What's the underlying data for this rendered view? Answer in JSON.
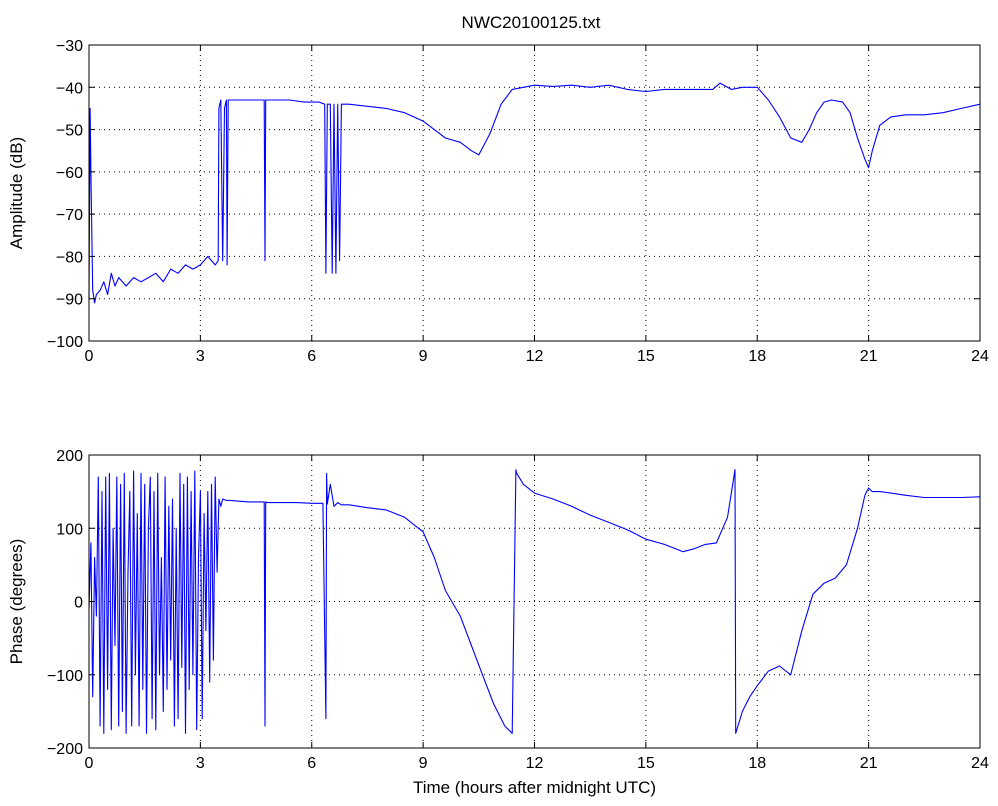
{
  "title": "NWC20100125.txt",
  "colors": {
    "series": "#0000ff",
    "axes": "#000000",
    "background": "#ffffff"
  },
  "chart_data": [
    {
      "type": "line",
      "title": "NWC20100125.txt",
      "xlabel": "",
      "ylabel": "Amplitude (dB)",
      "xlim": [
        0,
        24
      ],
      "ylim": [
        -100,
        -30
      ],
      "xticks": [
        0,
        3,
        6,
        9,
        12,
        15,
        18,
        21,
        24
      ],
      "yticks": [
        -100,
        -90,
        -80,
        -70,
        -60,
        -50,
        -40,
        -30
      ],
      "grid": true,
      "series": [
        {
          "color": "#0000ff",
          "x": [
            0,
            0.03,
            0.06,
            0.1,
            0.15,
            0.2,
            0.3,
            0.4,
            0.5,
            0.6,
            0.7,
            0.8,
            0.9,
            1.0,
            1.2,
            1.4,
            1.6,
            1.8,
            2.0,
            2.2,
            2.4,
            2.6,
            2.8,
            3.0,
            3.2,
            3.4,
            3.48,
            3.5,
            3.55,
            3.6,
            3.65,
            3.7,
            3.72,
            3.75,
            3.8,
            3.9,
            4.0,
            4.2,
            4.4,
            4.6,
            4.72,
            4.74,
            4.76,
            4.8,
            5.0,
            5.4,
            5.8,
            6.2,
            6.35,
            6.38,
            6.42,
            6.5,
            6.55,
            6.6,
            6.65,
            6.7,
            6.75,
            6.8,
            7.0,
            7.5,
            8.0,
            8.5,
            9.0,
            9.3,
            9.6,
            10.0,
            10.3,
            10.5,
            10.8,
            11.1,
            11.4,
            11.7,
            12.0,
            12.5,
            13.0,
            13.5,
            14.0,
            14.5,
            15.0,
            15.5,
            16.0,
            16.5,
            16.8,
            17.0,
            17.3,
            17.6,
            18.0,
            18.3,
            18.6,
            18.9,
            19.2,
            19.4,
            19.6,
            19.8,
            20.0,
            20.3,
            20.5,
            20.7,
            20.9,
            21.0,
            21.1,
            21.3,
            21.6,
            22.0,
            22.5,
            23.0,
            23.5,
            24.0
          ],
          "values": [
            -90,
            -45,
            -65,
            -88,
            -91,
            -89,
            -88,
            -86,
            -89,
            -84,
            -87,
            -85,
            -86,
            -87,
            -85,
            -86,
            -85,
            -84,
            -86,
            -83,
            -84,
            -82,
            -83,
            -82,
            -80,
            -82,
            -81,
            -45,
            -43,
            -81,
            -45,
            -43,
            -82,
            -43,
            -43,
            -43,
            -43,
            -43,
            -43,
            -43,
            -43,
            -81,
            -43,
            -43,
            -43,
            -43,
            -43.5,
            -43.5,
            -44,
            -84,
            -44,
            -44,
            -84,
            -44,
            -84,
            -44,
            -81,
            -44,
            -44,
            -44.5,
            -45,
            -46,
            -48,
            -50,
            -52,
            -53,
            -55,
            -56,
            -51,
            -44,
            -40.5,
            -40,
            -39.5,
            -39.8,
            -39.5,
            -40,
            -39.5,
            -40.5,
            -41,
            -40.5,
            -40.5,
            -40.5,
            -40.5,
            -39,
            -40.5,
            -40,
            -40,
            -43,
            -47,
            -52,
            -53,
            -50,
            -46,
            -43.5,
            -43,
            -43.5,
            -46,
            -52,
            -57,
            -59,
            -55,
            -49,
            -47,
            -46.5,
            -46.5,
            -46,
            -45,
            -44
          ]
        }
      ]
    },
    {
      "type": "line",
      "title": "",
      "xlabel": "Time (hours after midnight UTC)",
      "ylabel": "Phase (degrees)",
      "xlim": [
        0,
        24
      ],
      "ylim": [
        -200,
        200
      ],
      "xticks": [
        0,
        3,
        6,
        9,
        12,
        15,
        18,
        21,
        24
      ],
      "yticks": [
        -200,
        -100,
        0,
        100,
        200
      ],
      "grid": true,
      "series": [
        {
          "color": "#0000ff",
          "x": [
            0,
            0.05,
            0.1,
            0.15,
            0.2,
            0.25,
            0.3,
            0.35,
            0.4,
            0.45,
            0.5,
            0.55,
            0.6,
            0.65,
            0.7,
            0.75,
            0.8,
            0.85,
            0.9,
            0.95,
            1.0,
            1.05,
            1.1,
            1.15,
            1.2,
            1.25,
            1.3,
            1.35,
            1.4,
            1.45,
            1.5,
            1.55,
            1.6,
            1.65,
            1.7,
            1.75,
            1.8,
            1.85,
            1.9,
            1.95,
            2.0,
            2.05,
            2.1,
            2.15,
            2.2,
            2.25,
            2.3,
            2.35,
            2.4,
            2.45,
            2.5,
            2.55,
            2.6,
            2.65,
            2.7,
            2.75,
            2.8,
            2.85,
            2.9,
            2.95,
            3.0,
            3.05,
            3.1,
            3.15,
            3.2,
            3.25,
            3.3,
            3.35,
            3.4,
            3.45,
            3.5,
            3.55,
            3.6,
            3.7,
            3.8,
            4.0,
            4.3,
            4.6,
            4.72,
            4.74,
            4.76,
            4.8,
            5.2,
            5.6,
            6.0,
            6.3,
            6.38,
            6.4,
            6.42,
            6.5,
            6.6,
            6.7,
            6.8,
            7.0,
            7.5,
            8.0,
            8.5,
            9.0,
            9.3,
            9.6,
            10.0,
            10.3,
            10.6,
            10.9,
            11.2,
            11.4,
            11.5,
            11.52,
            11.7,
            12.0,
            12.5,
            13.0,
            13.5,
            14.0,
            14.5,
            15.0,
            15.5,
            15.8,
            16.0,
            16.3,
            16.6,
            16.9,
            17.2,
            17.4,
            17.42,
            17.6,
            17.8,
            18.0,
            18.3,
            18.6,
            18.9,
            19.2,
            19.5,
            19.8,
            20.1,
            20.4,
            20.7,
            20.9,
            21.0,
            21.1,
            21.3,
            21.6,
            22.0,
            22.5,
            23.0,
            23.5,
            24.0
          ],
          "values": [
            -10,
            80,
            -130,
            60,
            -20,
            170,
            -170,
            150,
            -180,
            170,
            -120,
            175,
            -175,
            100,
            -60,
            170,
            -170,
            160,
            -150,
            175,
            -180,
            40,
            150,
            -170,
            178,
            -100,
            120,
            -170,
            175,
            -120,
            160,
            -180,
            100,
            170,
            -160,
            150,
            -175,
            175,
            -100,
            60,
            -150,
            170,
            -120,
            130,
            -80,
            140,
            -170,
            100,
            -160,
            175,
            -90,
            160,
            -180,
            170,
            -120,
            150,
            -100,
            178,
            -175,
            60,
            150,
            -160,
            120,
            -40,
            150,
            -110,
            160,
            -80,
            170,
            40,
            140,
            130,
            140,
            138,
            138,
            137,
            136,
            136,
            136,
            -170,
            136,
            135,
            135,
            135,
            134,
            134,
            -160,
            175,
            133,
            160,
            130,
            135,
            132,
            132,
            128,
            125,
            115,
            95,
            60,
            15,
            -20,
            -60,
            -100,
            -140,
            -170,
            -180,
            180,
            175,
            160,
            148,
            140,
            130,
            118,
            108,
            98,
            85,
            78,
            72,
            68,
            72,
            78,
            80,
            115,
            180,
            -180,
            -150,
            -130,
            -115,
            -95,
            -88,
            -100,
            -40,
            10,
            25,
            32,
            50,
            100,
            145,
            155,
            150,
            150,
            148,
            145,
            142,
            142,
            142,
            143
          ]
        }
      ]
    }
  ]
}
